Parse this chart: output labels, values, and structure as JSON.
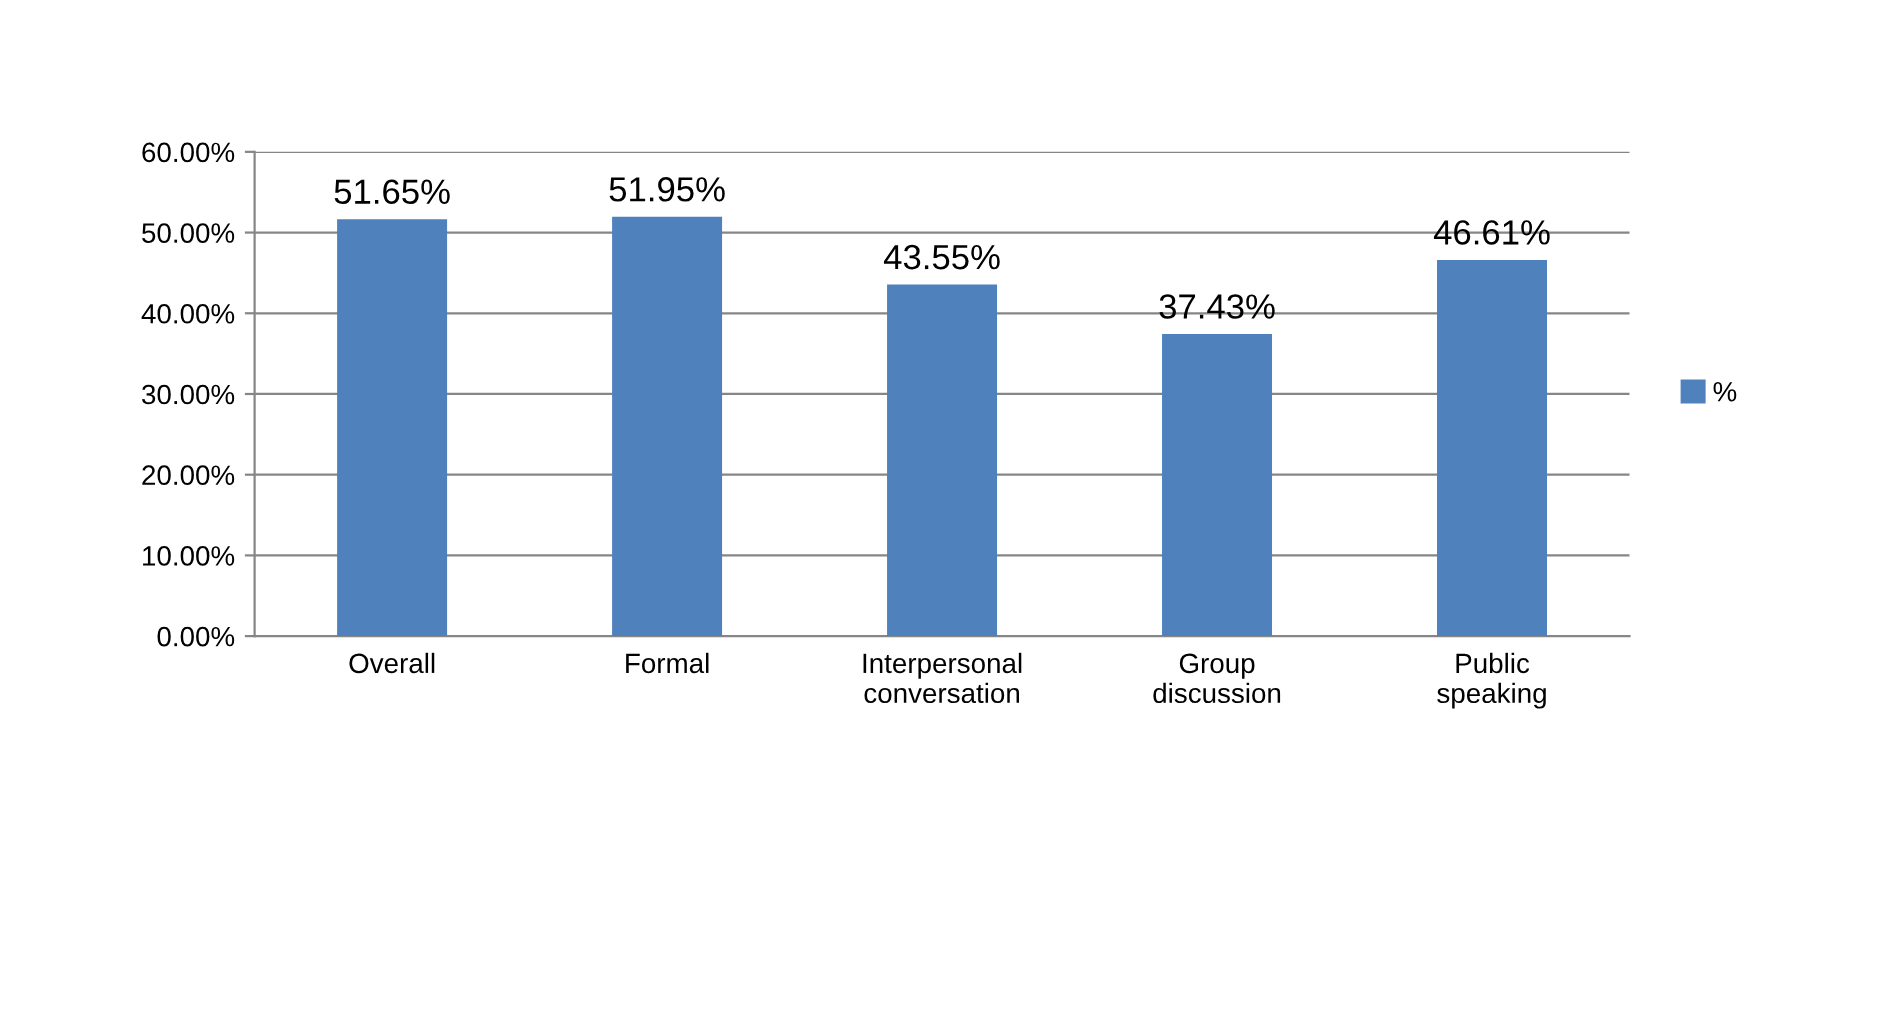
{
  "chart_data": {
    "type": "bar",
    "categories": [
      "Overall",
      "Formal",
      "Interpersonal\nconversation",
      "Group\ndiscussion",
      "Public\nspeaking"
    ],
    "series": [
      {
        "name": "%",
        "color": "#4f81bd",
        "values": [
          51.65,
          51.95,
          43.55,
          37.43,
          46.61
        ],
        "value_labels": [
          "51.65%",
          "51.95%",
          "43.55%",
          "37.43%",
          "46.61%"
        ]
      }
    ],
    "ylim": [
      0,
      60
    ],
    "yticks": [
      {
        "value": 0,
        "label": "0.00%"
      },
      {
        "value": 10,
        "label": "10.00%"
      },
      {
        "value": 20,
        "label": "20.00%"
      },
      {
        "value": 30,
        "label": "30.00%"
      },
      {
        "value": 40,
        "label": "40.00%"
      },
      {
        "value": 50,
        "label": "50.00%"
      },
      {
        "value": 60,
        "label": "60.00%"
      }
    ],
    "grid": "y",
    "legend": "right"
  }
}
